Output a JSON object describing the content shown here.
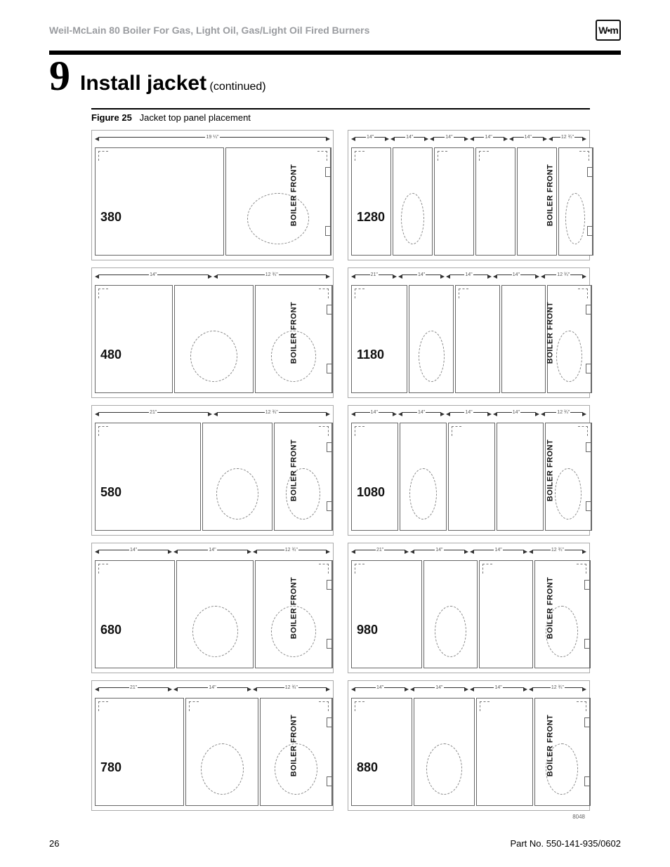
{
  "header": {
    "doc_title": "Weil-McLain 80 Boiler For Gas, Light Oil, Gas/Light Oil Fired Burners",
    "brand_text": "W•m"
  },
  "section": {
    "number": "9",
    "title": "Install jacket",
    "continued": "(continued)"
  },
  "figure": {
    "label": "Figure 25",
    "caption": "Jacket top panel placement",
    "ref_num": "8048",
    "boiler_front_label": "BOILER FRONT",
    "sets": [
      {
        "model": "380",
        "dims": [
          "19 ¼\"",
          "—"
        ],
        "panels": [
          {
            "w": 0.55,
            "opening": false,
            "corner_tl": true,
            "corner_tr": false
          },
          {
            "w": 0.45,
            "opening": true,
            "front": true,
            "notches": true,
            "corner_tl": false,
            "corner_tr": true
          }
        ]
      },
      {
        "model": "1280",
        "dims": [
          "14\"",
          "14\"",
          "14\"",
          "14\"",
          "14\"",
          "12 ¾\""
        ],
        "panels": [
          {
            "w": 0.17,
            "corner_tl": true
          },
          {
            "w": 0.17,
            "opening": true
          },
          {
            "w": 0.17,
            "corner_tl": true
          },
          {
            "w": 0.17,
            "corner_tl": true
          },
          {
            "w": 0.17
          },
          {
            "w": 0.15,
            "opening": true,
            "front": true,
            "notches": true,
            "corner_tr": true
          }
        ]
      },
      {
        "model": "480",
        "dims": [
          "14\"",
          "12 ¾\"",
          "—"
        ],
        "panels": [
          {
            "w": 0.33,
            "corner_tl": true
          },
          {
            "w": 0.34,
            "opening": true
          },
          {
            "w": 0.33,
            "opening": true,
            "front": true,
            "notches": true,
            "corner_tr": true
          }
        ]
      },
      {
        "model": "1180",
        "dims": [
          "21\"",
          "14\"",
          "14\"",
          "14\"",
          "12 ¾\""
        ],
        "panels": [
          {
            "w": 0.24,
            "corner_tl": true
          },
          {
            "w": 0.19,
            "opening": true
          },
          {
            "w": 0.19,
            "corner_tl": true
          },
          {
            "w": 0.19
          },
          {
            "w": 0.19,
            "opening": true,
            "front": true,
            "notches": true,
            "corner_tr": true
          }
        ]
      },
      {
        "model": "580",
        "dims": [
          "21\"",
          "12 ¾\"",
          "—"
        ],
        "panels": [
          {
            "w": 0.45,
            "corner_tl": true
          },
          {
            "w": 0.3,
            "opening": true
          },
          {
            "w": 0.25,
            "opening": true,
            "front": true,
            "notches": true,
            "corner_tr": true
          }
        ]
      },
      {
        "model": "1080",
        "dims": [
          "14\"",
          "14\"",
          "14\"",
          "14\"",
          "12 ¾\""
        ],
        "panels": [
          {
            "w": 0.2,
            "corner_tl": true
          },
          {
            "w": 0.2,
            "opening": true
          },
          {
            "w": 0.2,
            "corner_tl": true
          },
          {
            "w": 0.2
          },
          {
            "w": 0.2,
            "opening": true,
            "front": true,
            "notches": true,
            "corner_tr": true
          }
        ]
      },
      {
        "model": "680",
        "dims": [
          "14\"",
          "14\"",
          "12 ¾\""
        ],
        "panels": [
          {
            "w": 0.34,
            "corner_tl": true
          },
          {
            "w": 0.33,
            "opening": true
          },
          {
            "w": 0.33,
            "opening": true,
            "front": true,
            "notches": true,
            "corner_tr": true
          }
        ]
      },
      {
        "model": "980",
        "dims": [
          "21\"",
          "14\"",
          "14\"",
          "12 ¾\""
        ],
        "panels": [
          {
            "w": 0.3,
            "corner_tl": true
          },
          {
            "w": 0.23,
            "opening": true
          },
          {
            "w": 0.23,
            "corner_tl": true
          },
          {
            "w": 0.24,
            "opening": true,
            "front": true,
            "notches": true,
            "corner_tr": true
          }
        ]
      },
      {
        "model": "780",
        "dims": [
          "21\"",
          "14\"",
          "12 ¾\""
        ],
        "panels": [
          {
            "w": 0.38,
            "corner_tl": true
          },
          {
            "w": 0.31,
            "opening": true,
            "corner_tl": true
          },
          {
            "w": 0.31,
            "opening": true,
            "front": true,
            "notches": true,
            "corner_tr": true
          }
        ]
      },
      {
        "model": "880",
        "dims": [
          "14\"",
          "14\"",
          "14\"",
          "12 ¾\""
        ],
        "panels": [
          {
            "w": 0.26,
            "corner_tl": true
          },
          {
            "w": 0.26,
            "opening": true
          },
          {
            "w": 0.24,
            "corner_tl": true
          },
          {
            "w": 0.24,
            "opening": true,
            "front": true,
            "notches": true,
            "corner_tr": true
          }
        ]
      }
    ]
  },
  "footer": {
    "page_num": "26",
    "part_no": "Part No. 550-141-935/0602"
  }
}
